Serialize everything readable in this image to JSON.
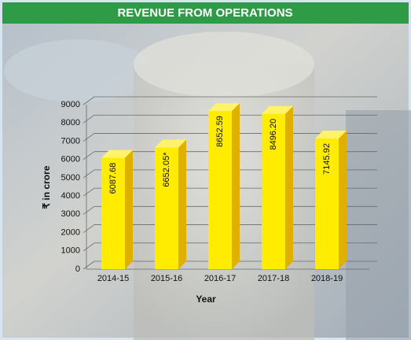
{
  "chart_data": {
    "type": "bar",
    "title": "REVENUE FROM OPERATIONS",
    "categories": [
      "2014-15",
      "2015-16",
      "2016-17",
      "2017-18",
      "2018-19"
    ],
    "values": [
      6087.68,
      6652.05,
      8652.59,
      8496.2,
      7145.92
    ],
    "value_labels": [
      "6087.68",
      "6652.05*",
      "8652.59",
      "8496.20",
      "7145.92"
    ],
    "color": "#ffec00",
    "xlabel": "Year",
    "ylabel": "₹ in crore",
    "ylim": [
      0,
      9000
    ],
    "yticks": [
      0,
      1000,
      2000,
      3000,
      4000,
      5000,
      6000,
      7000,
      8000,
      9000
    ],
    "grid": true
  }
}
